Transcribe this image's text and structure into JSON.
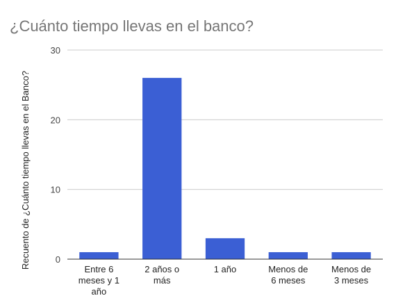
{
  "chart_data": {
    "type": "bar",
    "title": "¿Cuánto tiempo llevas en el banco?",
    "xlabel": "",
    "ylabel": "Recuento de ¿Cuánto tiempo llevas en el Banco?",
    "categories": [
      [
        "Entre 6",
        "meses y 1",
        "año"
      ],
      [
        "2 años o",
        "más"
      ],
      [
        "1 año"
      ],
      [
        "Menos de",
        "6 meses"
      ],
      [
        "Menos de",
        "3 meses"
      ]
    ],
    "values": [
      1,
      26,
      3,
      1,
      1
    ],
    "ylim": [
      0,
      30
    ],
    "yticks": [
      0,
      10,
      20,
      30
    ],
    "grid": true,
    "bar_color": "#3b5fd4"
  }
}
